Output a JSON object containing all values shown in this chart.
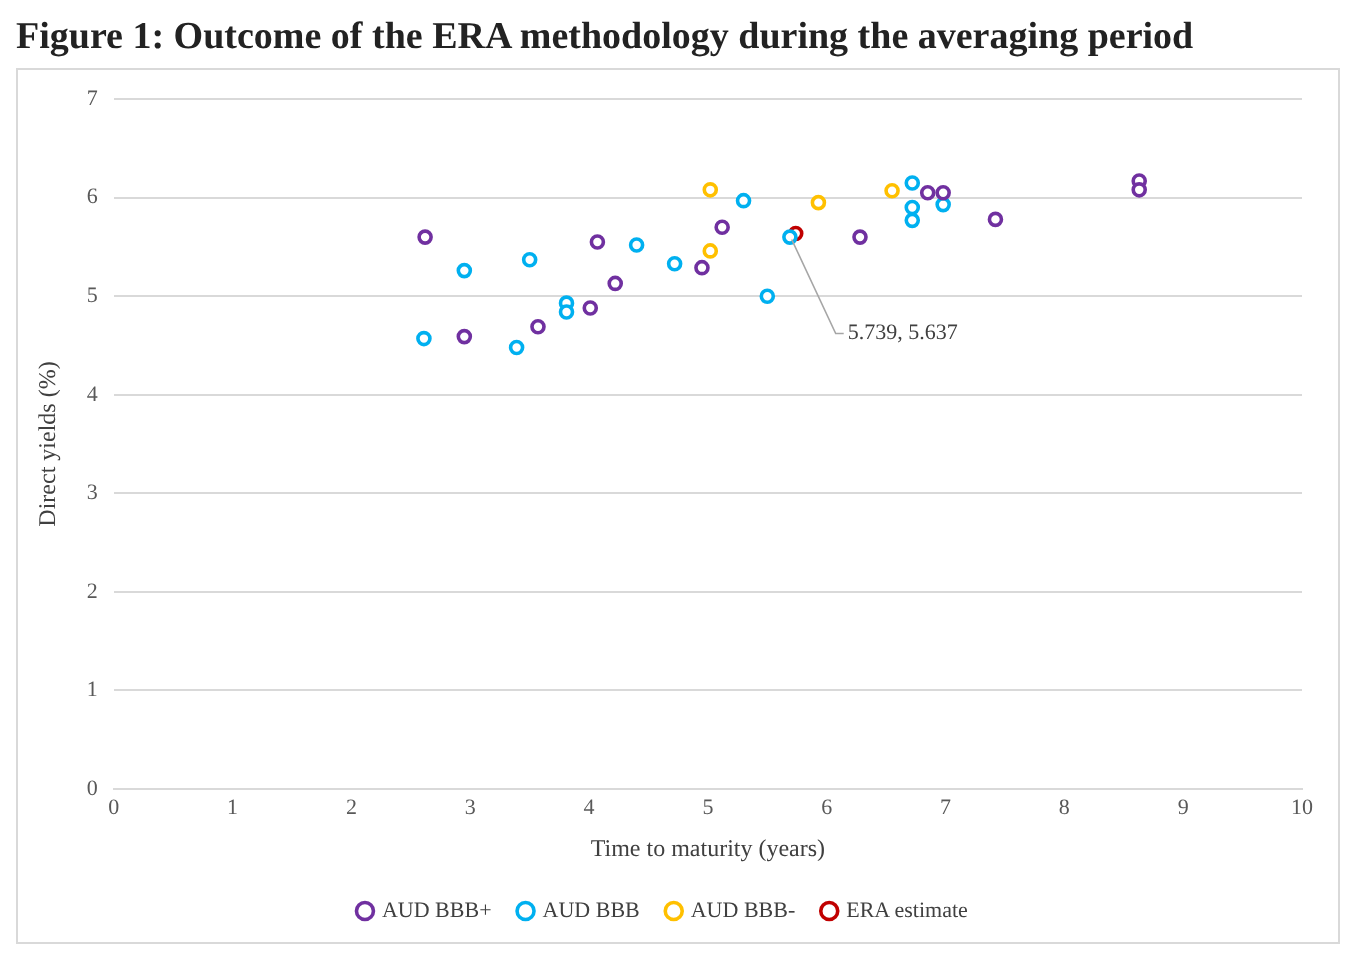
{
  "chart_data": {
    "type": "scatter",
    "title": "Figure 1: Outcome of the ERA methodology during the averaging period",
    "xlabel": "Time to maturity (years)",
    "ylabel": "Direct yields (%)",
    "xlim": [
      0,
      10
    ],
    "xticks": [
      0,
      1,
      2,
      3,
      4,
      5,
      6,
      7,
      8,
      9,
      10
    ],
    "ylim": [
      0,
      7
    ],
    "yticks": [
      0,
      1,
      2,
      3,
      4,
      5,
      6,
      7
    ],
    "grid": "y",
    "legend": "bottom",
    "marker": "circle",
    "series": [
      {
        "name": "AUD BBB+",
        "color": "#7030a0",
        "x": [
          2.62,
          2.95,
          3.57,
          4.01,
          4.07,
          4.22,
          4.95,
          5.12,
          6.28,
          6.85,
          6.98,
          7.42,
          8.63,
          8.63
        ],
        "values": [
          5.6,
          4.59,
          4.69,
          4.88,
          5.55,
          5.13,
          5.29,
          5.7,
          5.6,
          6.05,
          6.05,
          5.78,
          6.17,
          6.08
        ]
      },
      {
        "name": "AUD BBB",
        "color": "#00b0f0",
        "x": [
          2.61,
          2.95,
          3.39,
          3.5,
          3.81,
          3.81,
          4.4,
          4.72,
          5.3,
          5.5,
          5.69,
          6.72,
          6.72,
          6.72,
          6.98
        ],
        "values": [
          4.57,
          5.26,
          4.48,
          5.37,
          4.93,
          4.84,
          5.52,
          5.33,
          5.97,
          5.0,
          5.6,
          6.15,
          5.9,
          5.77,
          5.93
        ]
      },
      {
        "name": "AUD BBB-",
        "color": "#ffc000",
        "x": [
          5.02,
          5.02,
          5.93,
          6.55
        ],
        "values": [
          6.08,
          5.46,
          5.95,
          6.07
        ]
      },
      {
        "name": "ERA estimate",
        "color": "#c00000",
        "x": [
          5.739
        ],
        "values": [
          5.637
        ]
      }
    ],
    "annotations": [
      {
        "text": "5.739, 5.637",
        "x": 5.739,
        "y": 5.637
      }
    ]
  }
}
